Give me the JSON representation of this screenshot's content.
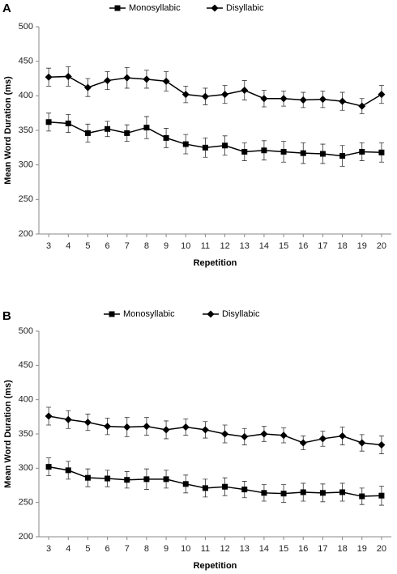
{
  "chart_data": [
    {
      "type": "line",
      "panel_label": "A",
      "xlabel": "Repetition",
      "ylabel": "Mean Word Duration (ms)",
      "x": [
        3,
        4,
        5,
        6,
        7,
        8,
        9,
        10,
        11,
        12,
        13,
        14,
        15,
        16,
        17,
        18,
        19,
        20
      ],
      "xlim": [
        2.5,
        20.5
      ],
      "xticks": [
        3,
        4,
        5,
        6,
        7,
        8,
        9,
        10,
        11,
        12,
        13,
        14,
        15,
        16,
        17,
        18,
        19,
        20
      ],
      "ylim": [
        200,
        500
      ],
      "yticks": [
        200,
        250,
        300,
        350,
        400,
        450,
        500
      ],
      "legend": "top",
      "series": [
        {
          "name": "Monosyllabic",
          "color": "#000000",
          "marker": "square",
          "values": [
            362,
            360,
            346,
            352,
            346,
            354,
            339,
            330,
            325,
            328,
            319,
            321,
            319,
            317,
            316,
            313,
            319,
            318
          ],
          "errors": [
            13,
            13,
            13,
            11,
            12,
            16,
            14,
            14,
            14,
            14,
            13,
            14,
            15,
            15,
            14,
            15,
            13,
            14
          ]
        },
        {
          "name": "Disyllabic",
          "color": "#000000",
          "marker": "diamond",
          "values": [
            427,
            428,
            412,
            422,
            426,
            424,
            421,
            402,
            399,
            402,
            408,
            396,
            396,
            394,
            395,
            392,
            385,
            402
          ],
          "errors": [
            13,
            14,
            13,
            13,
            15,
            13,
            14,
            12,
            12,
            13,
            14,
            12,
            11,
            11,
            12,
            13,
            11,
            13
          ]
        }
      ]
    },
    {
      "type": "line",
      "panel_label": "B",
      "xlabel": "Repetition",
      "ylabel": "Mean Word Duration (ms)",
      "x": [
        3,
        4,
        5,
        6,
        7,
        8,
        9,
        10,
        11,
        12,
        13,
        14,
        15,
        16,
        17,
        18,
        19,
        20
      ],
      "xlim": [
        2.5,
        20.5
      ],
      "xticks": [
        3,
        4,
        5,
        6,
        7,
        8,
        9,
        10,
        11,
        12,
        13,
        14,
        15,
        16,
        17,
        18,
        19,
        20
      ],
      "ylim": [
        200,
        500
      ],
      "yticks": [
        200,
        250,
        300,
        350,
        400,
        450,
        500
      ],
      "legend": "top",
      "series": [
        {
          "name": "Monosyllabic",
          "color": "#000000",
          "marker": "square",
          "values": [
            302,
            297,
            286,
            285,
            283,
            284,
            284,
            277,
            271,
            273,
            269,
            264,
            263,
            265,
            264,
            265,
            259,
            260
          ],
          "errors": [
            13,
            13,
            13,
            12,
            12,
            15,
            13,
            13,
            13,
            13,
            12,
            12,
            13,
            13,
            13,
            13,
            12,
            14
          ]
        },
        {
          "name": "Disyllabic",
          "color": "#000000",
          "marker": "diamond",
          "values": [
            376,
            371,
            367,
            361,
            360,
            361,
            356,
            360,
            356,
            350,
            346,
            350,
            348,
            337,
            343,
            347,
            337,
            334
          ],
          "errors": [
            13,
            13,
            12,
            12,
            14,
            13,
            13,
            12,
            12,
            13,
            12,
            11,
            11,
            10,
            11,
            13,
            12,
            13
          ]
        }
      ]
    }
  ]
}
